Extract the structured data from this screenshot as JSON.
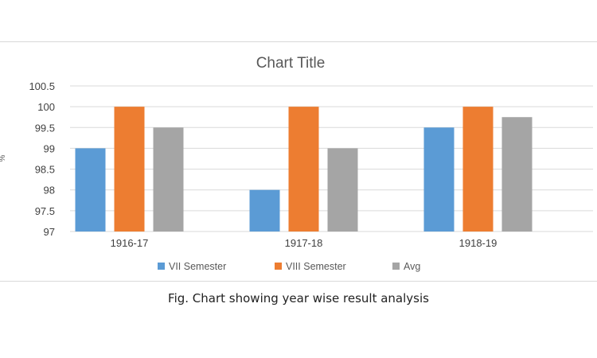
{
  "caption": "Fig. Chart showing year wise result analysis",
  "chart_data": {
    "type": "bar",
    "title": "Chart Title",
    "ylabel": "%",
    "xlabel": "",
    "categories": [
      "1916-17",
      "1917-18",
      "1918-19"
    ],
    "series": [
      {
        "name": "VII Semester",
        "values": [
          99,
          98,
          99.5
        ],
        "color": "#5b9bd5"
      },
      {
        "name": "VIII Semester",
        "values": [
          100,
          100,
          100
        ],
        "color": "#ed7d31"
      },
      {
        "name": "Avg",
        "values": [
          99.5,
          99,
          99.75
        ],
        "color": "#a5a5a5"
      }
    ],
    "ylim": [
      97,
      100.5
    ],
    "yticks": [
      "97",
      "97.5",
      "98",
      "98.5",
      "99",
      "99.5",
      "100",
      "100.5"
    ],
    "grid": true,
    "legend": "bottom"
  }
}
